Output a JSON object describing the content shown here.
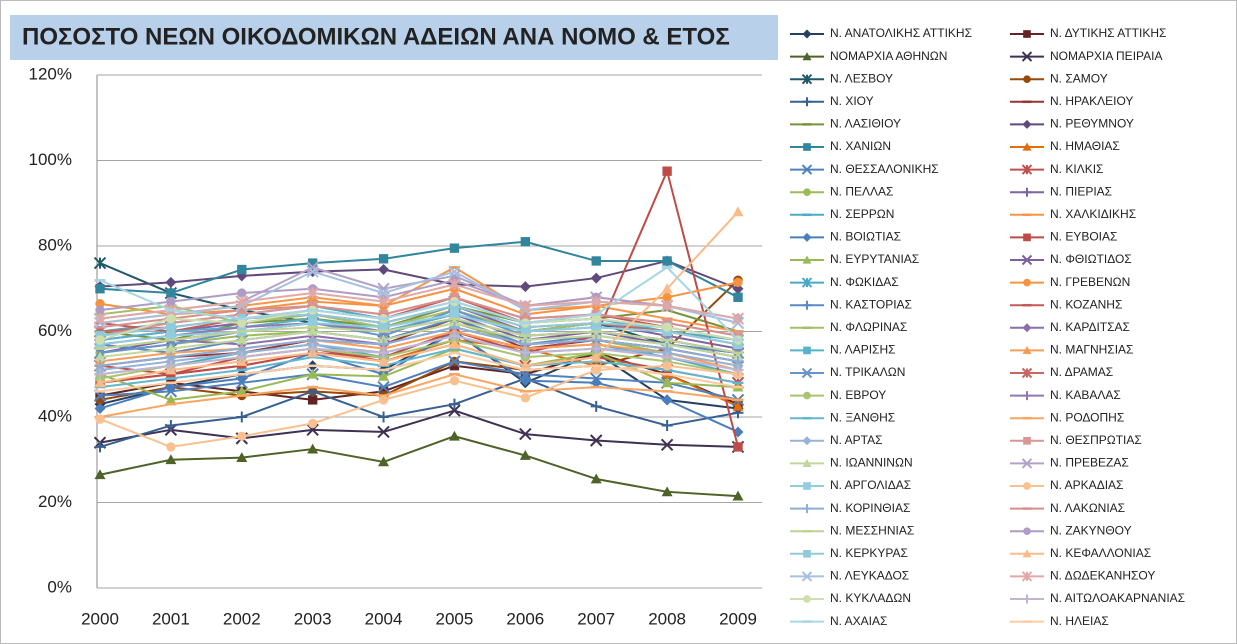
{
  "chart_data": {
    "type": "line",
    "title": "ΠΟΣΟΣΤΟ ΝΕΩΝ  ΟΙΚΟΔΟΜΙΚΩΝ ΑΔΕΙΩΝ ΑΝΑ ΝΟΜΟ & ΕΤΟΣ",
    "categories": [
      "2000",
      "2001",
      "2002",
      "2003",
      "2004",
      "2005",
      "2006",
      "2007",
      "2008",
      "2009"
    ],
    "ylim": [
      0,
      120
    ],
    "yticks": [
      {
        "value": 0,
        "label": "0%"
      },
      {
        "value": 20,
        "label": "20%"
      },
      {
        "value": 40,
        "label": "40%"
      },
      {
        "value": 60,
        "label": "60%"
      },
      {
        "value": 80,
        "label": "80%"
      },
      {
        "value": 100,
        "label": "100%"
      },
      {
        "value": 120,
        "label": "120%"
      }
    ],
    "grid": true,
    "legend": "right",
    "series": [
      {
        "name": "Ν. ΑΝΑΤΟΛΙΚΗΣ ΑΤΤΙΚΗΣ",
        "color": "#254061",
        "marker": "diamond",
        "values": [
          43,
          47,
          50,
          52,
          51,
          60,
          48,
          55,
          44,
          42
        ]
      },
      {
        "name": "Ν. ΔΥΤΙΚΗΣ ΑΤΤΙΚΗΣ",
        "color": "#632523",
        "marker": "square",
        "values": [
          45,
          48,
          46,
          44,
          46,
          52,
          50,
          55,
          50,
          43
        ]
      },
      {
        "name": "ΝΟΜΑΡΧΙΑ ΑΘΗΝΩΝ",
        "color": "#4F6228",
        "marker": "triangle",
        "values": [
          26.5,
          30,
          30.5,
          32.5,
          29.5,
          35.5,
          31,
          25.5,
          22.5,
          21.5
        ]
      },
      {
        "name": "ΝΟΜΑΡΧΙΑ ΠΕΙΡΑΙΑ",
        "color": "#3F3151",
        "marker": "x",
        "values": [
          34,
          37,
          35,
          37,
          36.5,
          41.5,
          36,
          34.5,
          33.5,
          33
        ]
      },
      {
        "name": "Ν. ΛΕΣΒΟΥ",
        "color": "#215968",
        "marker": "star",
        "values": [
          76,
          69,
          65,
          62,
          60,
          64,
          60,
          62,
          57,
          55
        ]
      },
      {
        "name": "Ν. ΣΑΜΟΥ",
        "color": "#984807",
        "marker": "circle",
        "values": [
          44,
          47,
          45,
          46,
          45,
          53,
          51,
          52,
          56,
          72
        ]
      },
      {
        "name": "Ν. ΧΙΟΥ",
        "color": "#376092",
        "marker": "plus",
        "values": [
          33,
          38,
          40,
          46,
          40,
          43,
          49,
          42.5,
          38,
          41
        ]
      },
      {
        "name": "Ν. ΗΡΑΚΛΕΙΟΥ",
        "color": "#953735",
        "marker": "dash",
        "values": [
          52,
          54,
          55,
          58,
          57,
          63,
          56,
          58,
          56,
          53
        ]
      },
      {
        "name": "Ν. ΛΑΣΙΘΙΟΥ",
        "color": "#77933C",
        "marker": "dash",
        "values": [
          60,
          58,
          62,
          63,
          61,
          66,
          62,
          63,
          65,
          60
        ]
      },
      {
        "name": "Ν. ΡΕΘΥΜΝΟΥ",
        "color": "#604A7B",
        "marker": "diamond",
        "values": [
          70.5,
          71.5,
          73,
          74,
          74.5,
          71,
          70.5,
          72.5,
          76.5,
          70
        ]
      },
      {
        "name": "Ν. ΧΑΝΙΩΝ",
        "color": "#31859C",
        "marker": "square",
        "values": [
          70,
          69,
          74.5,
          76,
          77,
          79.5,
          81,
          76.5,
          76.5,
          68
        ]
      },
      {
        "name": "Ν. ΗΜΑΘΙΑΣ",
        "color": "#E46C0A",
        "marker": "triangle",
        "values": [
          48,
          50,
          52,
          55,
          53,
          58,
          56,
          52,
          50,
          42.5
        ]
      },
      {
        "name": "Ν. ΘΕΣΣΑΛΟΝΙΚΗΣ",
        "color": "#4F81BD",
        "marker": "x",
        "values": [
          45,
          46,
          48,
          50,
          47,
          53,
          50,
          49,
          48,
          44
        ]
      },
      {
        "name": "Ν. ΚΙΛΚΙΣ",
        "color": "#C0504D",
        "marker": "star",
        "values": [
          52,
          50,
          54,
          56,
          53,
          57,
          52,
          54,
          51,
          48
        ]
      },
      {
        "name": "Ν. ΠΕΛΛΑΣ",
        "color": "#9BBB59",
        "marker": "circle",
        "values": [
          55,
          57,
          59,
          60,
          58,
          62,
          57,
          58,
          55,
          52
        ]
      },
      {
        "name": "Ν. ΠΙΕΡΙΑΣ",
        "color": "#8064A2",
        "marker": "plus",
        "values": [
          58,
          60,
          62,
          64,
          62,
          66,
          60,
          62,
          59,
          56
        ]
      },
      {
        "name": "Ν. ΣΕΡΡΩΝ",
        "color": "#4BACC6",
        "marker": "dash",
        "values": [
          50,
          52,
          55,
          57,
          54,
          60,
          56,
          57,
          54,
          50
        ]
      },
      {
        "name": "Ν. ΧΑΛΚΙΔΙΚΗΣ",
        "color": "#F79646",
        "marker": "dash",
        "values": [
          62,
          64,
          66,
          68,
          66,
          75,
          65,
          66,
          63,
          60
        ]
      },
      {
        "name": "Ν. ΒΟΙΩΤΙΑΣ",
        "color": "#4A7EBB",
        "marker": "diamond",
        "values": [
          42,
          47,
          49,
          55,
          50,
          60,
          48.5,
          48,
          44,
          36.5
        ]
      },
      {
        "name": "Ν. ΕΥΒΟΙΑΣ",
        "color": "#BE4B48",
        "marker": "square",
        "values": [
          48,
          50,
          52,
          55,
          54,
          60,
          55,
          59,
          97.5,
          33
        ]
      },
      {
        "name": "Ν. ΕΥΡΥΤΑΝΙΑΣ",
        "color": "#98B954",
        "marker": "triangle",
        "values": [
          50,
          44,
          46,
          50,
          49.5,
          56,
          52,
          55,
          48,
          47
        ]
      },
      {
        "name": "Ν. ΦΘΙΩΤΙΔΟΣ",
        "color": "#7D60A0",
        "marker": "x",
        "values": [
          55,
          58,
          60,
          62,
          60,
          64,
          58,
          60,
          57,
          54
        ]
      },
      {
        "name": "Ν. ΦΩΚΙΔΑΣ",
        "color": "#46AAC5",
        "marker": "star",
        "values": [
          60,
          62,
          64,
          66,
          63,
          67,
          62,
          63,
          60,
          58
        ]
      },
      {
        "name": "Ν. ΓΡΕΒΕΝΩΝ",
        "color": "#F69240",
        "marker": "circle",
        "values": [
          66.5,
          64,
          65,
          67,
          66,
          70,
          64,
          66,
          68,
          71.5
        ]
      },
      {
        "name": "Ν. ΚΑΣΤΟΡΙΑΣ",
        "color": "#5A8AC6",
        "marker": "plus",
        "values": [
          57,
          55,
          58,
          60,
          58,
          63,
          57,
          59,
          57,
          55
        ]
      },
      {
        "name": "Ν. ΚΟΖΑΝΗΣ",
        "color": "#C45A57",
        "marker": "dash",
        "values": [
          62,
          60,
          63,
          65,
          63,
          68,
          62,
          64,
          61,
          58
        ]
      },
      {
        "name": "Ν. ΦΛΩΡΙΝΑΣ",
        "color": "#A2C066",
        "marker": "dash",
        "values": [
          64,
          66,
          62,
          64,
          61,
          65,
          60,
          62,
          60,
          57
        ]
      },
      {
        "name": "Ν. ΚΑΡΔΙΤΣΑΣ",
        "color": "#8A6FAA",
        "marker": "diamond",
        "values": [
          56,
          58,
          57,
          59,
          57,
          61,
          57,
          58,
          56,
          53
        ]
      },
      {
        "name": "Ν. ΛΑΡΙΣΗΣ",
        "color": "#57B2CA",
        "marker": "square",
        "values": [
          58,
          60,
          61,
          63,
          60,
          64,
          60,
          61,
          60,
          57
        ]
      },
      {
        "name": "Ν. ΜΑΓΝΗΣΙΑΣ",
        "color": "#F89E58",
        "marker": "triangle",
        "values": [
          53,
          55,
          56,
          58,
          56,
          60,
          56,
          57,
          55,
          51
        ]
      },
      {
        "name": "Ν. ΤΡΙΚΑΛΩΝ",
        "color": "#6794CB",
        "marker": "x",
        "values": [
          55,
          57,
          60,
          62,
          59,
          65,
          59,
          60,
          58,
          55
        ]
      },
      {
        "name": "Ν. ΔΡΑΜΑΣ",
        "color": "#C96562",
        "marker": "star",
        "values": [
          60,
          61,
          63,
          64,
          62,
          66,
          61,
          62,
          60,
          57
        ]
      },
      {
        "name": "Ν. ΕΒΡΟΥ",
        "color": "#A9C471",
        "marker": "circle",
        "values": [
          49,
          52,
          54,
          56,
          54,
          58,
          54,
          55,
          53,
          50
        ]
      },
      {
        "name": "Ν. ΚΑΒΑΛΑΣ",
        "color": "#9379B0",
        "marker": "plus",
        "values": [
          57,
          59,
          61,
          62,
          60,
          63,
          59,
          60,
          58,
          55
        ]
      },
      {
        "name": "Ν. ΞΑΝΘΗΣ",
        "color": "#62B7CE",
        "marker": "dash",
        "values": [
          47,
          49,
          51,
          54,
          52,
          56,
          52,
          53,
          51,
          48
        ]
      },
      {
        "name": "Ν. ΡΟΔΟΠΗΣ",
        "color": "#F9A562",
        "marker": "dash",
        "values": [
          40,
          43,
          45,
          47,
          45,
          50,
          46,
          47,
          46,
          44
        ]
      },
      {
        "name": "Ν. ΑΡΤΑΣ",
        "color": "#95B3D7",
        "marker": "diamond",
        "values": [
          51,
          53,
          55,
          57,
          55,
          59,
          55,
          56,
          55,
          52
        ]
      },
      {
        "name": "Ν. ΘΕΣΠΡΩΤΙΑΣ",
        "color": "#D99694",
        "marker": "square",
        "values": [
          59,
          62,
          64,
          66,
          64,
          68,
          63,
          64,
          62,
          59
        ]
      },
      {
        "name": "Ν. ΙΩΑΝΝΙΝΩΝ",
        "color": "#C3D69B",
        "marker": "triangle",
        "values": [
          54,
          56,
          58,
          60,
          58,
          62,
          58,
          59,
          57,
          54
        ]
      },
      {
        "name": "Ν. ΠΡΕΒΕΖΑΣ",
        "color": "#B3A2C7",
        "marker": "x",
        "values": [
          63,
          65,
          67,
          75,
          70,
          73,
          66,
          68,
          66,
          62
        ]
      },
      {
        "name": "Ν. ΑΡΓΟΛΙΔΑΣ",
        "color": "#93CDDD",
        "marker": "square",
        "values": [
          57,
          59,
          60,
          62,
          61,
          64,
          60,
          61,
          60,
          57
        ]
      },
      {
        "name": "Ν. ΑΡΚΑΔΙΑΣ",
        "color": "#FAC090",
        "marker": "circle",
        "values": [
          39.5,
          33,
          35.5,
          38.5,
          44,
          48.5,
          44.5,
          51,
          52,
          50
        ]
      },
      {
        "name": "Ν. ΚΟΡΙΝΘΙΑΣ",
        "color": "#8EAED5",
        "marker": "plus",
        "values": [
          52,
          54,
          56,
          58,
          57,
          61,
          57,
          58,
          56,
          53
        ]
      },
      {
        "name": "Ν. ΛΑΚΩΝΙΑΣ",
        "color": "#D78F8D",
        "marker": "dash",
        "values": [
          61,
          63,
          65,
          66,
          64,
          68,
          63,
          64,
          62,
          59
        ]
      },
      {
        "name": "Ν. ΜΕΣΣΗΝΙΑΣ",
        "color": "#BFD395",
        "marker": "dash",
        "values": [
          56,
          58,
          60,
          61,
          60,
          63,
          59,
          60,
          58,
          55
        ]
      },
      {
        "name": "Ν. ΖΑΚΥΝΘΟΥ",
        "color": "#AE9CC4",
        "marker": "circle",
        "values": [
          65,
          67,
          69,
          70,
          68,
          72,
          66,
          68,
          66,
          63
        ]
      },
      {
        "name": "Ν. ΚΕΡΚΥΡΑΣ",
        "color": "#8DCBDB",
        "marker": "square",
        "values": [
          59,
          61,
          63,
          64,
          62,
          66,
          61,
          62,
          61,
          58
        ]
      },
      {
        "name": "Ν. ΚΕΦΑΛΛΟΝΙΑΣ",
        "color": "#FABB88",
        "marker": "triangle",
        "values": [
          48,
          51,
          53,
          55,
          53,
          57,
          52,
          54,
          70,
          88
        ]
      },
      {
        "name": "Ν. ΛΕΥΚΑΔΟΣ",
        "color": "#A5C0E0",
        "marker": "x",
        "values": [
          62,
          64,
          66,
          74,
          69,
          74,
          65,
          67,
          66,
          62
        ]
      },
      {
        "name": "Ν. ΔΩΔΕΚΑΝΗΣΟΥ",
        "color": "#E0A9A7",
        "marker": "star",
        "values": [
          63,
          65,
          67,
          69,
          67,
          71,
          66,
          67,
          66,
          63
        ]
      },
      {
        "name": "Ν. ΚΥΚΛΑΔΩΝ",
        "color": "#CFDEAF",
        "marker": "circle",
        "values": [
          58,
          63,
          62,
          65,
          63,
          67,
          62,
          63,
          61,
          58
        ]
      },
      {
        "name": "Ν. ΑΙΤΩΛΟΑΚΑΡΝΑΝΙΑΣ",
        "color": "#C2B5D2",
        "marker": "plus",
        "values": [
          50,
          52,
          54,
          56,
          55,
          59,
          55,
          56,
          54,
          51
        ]
      },
      {
        "name": "Ν. ΑΧΑΙΑΣ",
        "color": "#A6D6E3",
        "marker": "dash",
        "values": [
          72,
          65,
          63,
          65,
          63,
          67,
          62,
          64,
          75,
          58
        ]
      },
      {
        "name": "Ν. ΗΛΕΙΑΣ",
        "color": "#FBCBA2",
        "marker": "dash",
        "values": [
          46,
          48,
          50,
          52,
          51,
          55,
          51,
          52,
          50,
          47
        ]
      }
    ]
  }
}
